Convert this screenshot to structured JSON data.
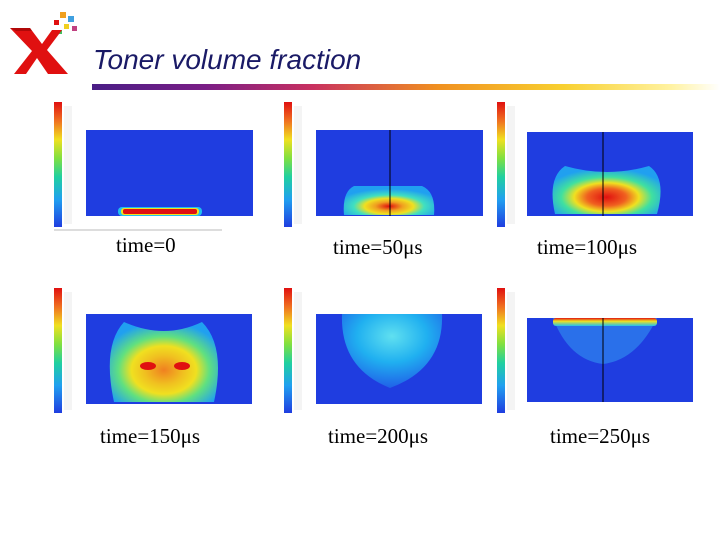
{
  "slide": {
    "title": "Toner volume fraction",
    "colors": {
      "title": "#1a1a66",
      "logo_red": "#e01010",
      "plot_background": "#1f3de0"
    },
    "logo_icon": "xerox-x-logo-icon"
  },
  "panels": [
    {
      "caption": "time=0"
    },
    {
      "caption": "time=50μs"
    },
    {
      "caption": "time=100μs"
    },
    {
      "caption": "time=150μs"
    },
    {
      "caption": "time=200μs"
    },
    {
      "caption": "time=250μs"
    }
  ]
}
